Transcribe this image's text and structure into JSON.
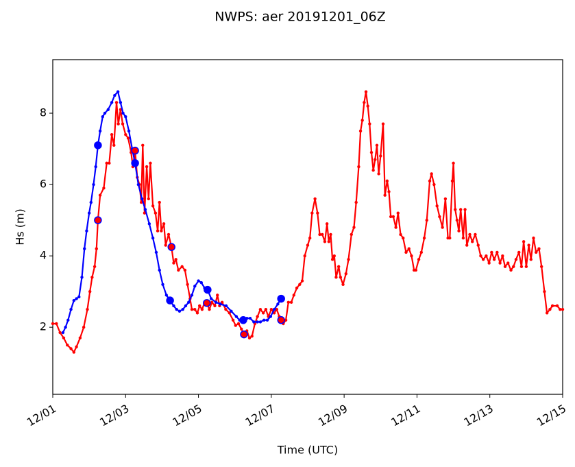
{
  "chart_data": {
    "type": "line",
    "title": "NWPS: aer 20191201_06Z",
    "xlabel": "Time (UTC)",
    "ylabel": "Hs (m)",
    "xlim": [
      1,
      15
    ],
    "ylim": [
      0.12,
      9.5
    ],
    "xticks": [
      {
        "value": 1,
        "label": "12/01"
      },
      {
        "value": 3,
        "label": "12/03"
      },
      {
        "value": 5,
        "label": "12/05"
      },
      {
        "value": 7,
        "label": "12/07"
      },
      {
        "value": 9,
        "label": "12/09"
      },
      {
        "value": 11,
        "label": "12/11"
      },
      {
        "value": 13,
        "label": "12/13"
      },
      {
        "value": 15,
        "label": "12/15"
      }
    ],
    "yticks": [
      2,
      4,
      6,
      8
    ],
    "series": [
      {
        "color": "#ff0000",
        "style": "line",
        "x": [
          1.0,
          1.1,
          1.2,
          1.3,
          1.4,
          1.5,
          1.58,
          1.65,
          1.75,
          1.85,
          1.95,
          2.02,
          2.08,
          2.15,
          2.2,
          2.24,
          2.3,
          2.4,
          2.48,
          2.55,
          2.62,
          2.68,
          2.75,
          2.8,
          2.86,
          2.92,
          3.0,
          3.07,
          3.15,
          3.2,
          3.26,
          3.32,
          3.38,
          3.43,
          3.47,
          3.52,
          3.58,
          3.63,
          3.68,
          3.75,
          3.82,
          3.88,
          3.93,
          3.98,
          4.05,
          4.1,
          4.18,
          4.26,
          4.32,
          4.38,
          4.45,
          4.55,
          4.63,
          4.7,
          4.77,
          4.82,
          4.9,
          4.97,
          5.03,
          5.1,
          5.17,
          5.23,
          5.3,
          5.37,
          5.45,
          5.52,
          5.58,
          5.65,
          5.75,
          5.85,
          5.95,
          6.02,
          6.1,
          6.18,
          6.25,
          6.33,
          6.4,
          6.47,
          6.55,
          6.62,
          6.7,
          6.78,
          6.85,
          6.92,
          7.0,
          7.08,
          7.15,
          7.22,
          7.27,
          7.33,
          7.4,
          7.47,
          7.55,
          7.62,
          7.7,
          7.78,
          7.85,
          7.92,
          8.0,
          8.06,
          8.12,
          8.2,
          8.27,
          8.33,
          8.4,
          8.47,
          8.53,
          8.58,
          8.63,
          8.68,
          8.73,
          8.78,
          8.85,
          8.9,
          8.97,
          9.05,
          9.12,
          9.2,
          9.27,
          9.33,
          9.4,
          9.45,
          9.5,
          9.55,
          9.6,
          9.65,
          9.7,
          9.75,
          9.8,
          9.85,
          9.9,
          9.95,
          10.0,
          10.07,
          10.12,
          10.18,
          10.23,
          10.28,
          10.35,
          10.42,
          10.48,
          10.55,
          10.62,
          10.7,
          10.78,
          10.85,
          10.92,
          10.97,
          11.05,
          11.12,
          11.2,
          11.27,
          11.35,
          11.4,
          11.47,
          11.55,
          11.62,
          11.7,
          11.78,
          11.85,
          11.9,
          11.97,
          12.0,
          12.05,
          12.1,
          12.15,
          12.2,
          12.27,
          12.32,
          12.37,
          12.45,
          12.52,
          12.6,
          12.68,
          12.75,
          12.82,
          12.9,
          12.98,
          13.05,
          13.12,
          13.2,
          13.28,
          13.35,
          13.42,
          13.5,
          13.58,
          13.65,
          13.72,
          13.8,
          13.87,
          13.93,
          14.0,
          14.07,
          14.13,
          14.2,
          14.27,
          14.35,
          14.42,
          14.5,
          14.57,
          14.65,
          14.72,
          14.85,
          14.93,
          15.0
        ],
        "values": [
          2.1,
          2.1,
          1.85,
          1.7,
          1.5,
          1.4,
          1.3,
          1.45,
          1.7,
          2.0,
          2.5,
          3.0,
          3.4,
          3.7,
          4.2,
          5.0,
          5.7,
          5.9,
          6.6,
          6.6,
          7.4,
          7.1,
          8.3,
          7.7,
          8.1,
          7.7,
          7.4,
          7.3,
          6.9,
          6.5,
          6.95,
          6.2,
          6.0,
          5.5,
          7.1,
          5.2,
          6.5,
          5.6,
          6.6,
          5.4,
          5.2,
          4.7,
          5.5,
          4.7,
          4.9,
          4.3,
          4.6,
          4.25,
          3.8,
          3.9,
          3.6,
          3.7,
          3.6,
          3.2,
          2.8,
          2.5,
          2.5,
          2.4,
          2.6,
          2.5,
          2.7,
          2.68,
          2.5,
          2.7,
          2.6,
          2.9,
          2.6,
          2.7,
          2.5,
          2.4,
          2.2,
          2.05,
          2.1,
          1.95,
          1.8,
          1.9,
          1.7,
          1.75,
          2.1,
          2.3,
          2.5,
          2.4,
          2.5,
          2.3,
          2.5,
          2.4,
          2.5,
          2.3,
          2.2,
          2.1,
          2.2,
          2.7,
          2.7,
          2.9,
          3.1,
          3.2,
          3.3,
          4.0,
          4.3,
          4.5,
          5.2,
          5.6,
          5.2,
          4.6,
          4.6,
          4.4,
          4.9,
          4.4,
          4.6,
          3.9,
          4.0,
          3.4,
          3.7,
          3.4,
          3.2,
          3.5,
          3.9,
          4.6,
          4.8,
          5.5,
          6.5,
          7.5,
          7.8,
          8.3,
          8.6,
          8.2,
          7.7,
          6.9,
          6.4,
          6.7,
          7.1,
          6.3,
          6.8,
          7.7,
          5.7,
          6.1,
          5.8,
          5.1,
          5.1,
          4.8,
          5.2,
          4.6,
          4.5,
          4.1,
          4.2,
          4.0,
          3.6,
          3.6,
          3.9,
          4.1,
          4.5,
          5.0,
          6.1,
          6.3,
          6.0,
          5.4,
          5.1,
          4.8,
          5.6,
          4.5,
          4.5,
          6.1,
          6.6,
          5.3,
          5.0,
          4.7,
          5.3,
          4.5,
          5.3,
          4.3,
          4.6,
          4.4,
          4.6,
          4.3,
          4.0,
          3.9,
          4.0,
          3.8,
          4.1,
          3.9,
          4.1,
          3.8,
          4.0,
          3.7,
          3.8,
          3.6,
          3.7,
          3.9,
          4.1,
          3.7,
          4.4,
          3.7,
          4.3,
          3.9,
          4.5,
          4.1,
          4.2,
          3.7,
          3.0,
          2.4,
          2.5,
          2.6,
          2.6,
          2.5,
          2.5
        ]
      },
      {
        "color": "#0000ff",
        "style": "line",
        "x": [
          1.28,
          1.35,
          1.42,
          1.5,
          1.58,
          1.65,
          1.72,
          1.8,
          1.87,
          1.93,
          2.0,
          2.05,
          2.12,
          2.18,
          2.24,
          2.3,
          2.37,
          2.43,
          2.52,
          2.62,
          2.7,
          2.79,
          2.86,
          2.93,
          3.0,
          3.09,
          3.18,
          3.26,
          3.35,
          3.45,
          3.54,
          3.65,
          3.75,
          3.84,
          3.93,
          4.02,
          4.12,
          4.22,
          4.32,
          4.4,
          4.48,
          4.57,
          4.65,
          4.73,
          4.82,
          4.9,
          5.0,
          5.08,
          5.17,
          5.25,
          5.35,
          5.48,
          5.6,
          5.76,
          5.9,
          6.04,
          6.13,
          6.23,
          6.33,
          6.42,
          6.52,
          6.62,
          6.7,
          6.8,
          6.89,
          6.98,
          7.08,
          7.18,
          7.27
        ],
        "values": [
          1.85,
          2.0,
          2.2,
          2.5,
          2.75,
          2.8,
          2.85,
          3.4,
          4.2,
          4.7,
          5.2,
          5.5,
          6.0,
          6.5,
          7.1,
          7.5,
          7.9,
          8.0,
          8.1,
          8.3,
          8.5,
          8.6,
          8.3,
          8.0,
          7.9,
          7.5,
          7.0,
          6.6,
          6.0,
          5.6,
          5.3,
          4.9,
          4.5,
          4.1,
          3.6,
          3.2,
          2.9,
          2.75,
          2.6,
          2.5,
          2.45,
          2.5,
          2.6,
          2.7,
          2.9,
          3.15,
          3.3,
          3.25,
          3.1,
          3.05,
          2.8,
          2.7,
          2.65,
          2.6,
          2.45,
          2.3,
          2.2,
          2.2,
          2.25,
          2.25,
          2.15,
          2.15,
          2.15,
          2.2,
          2.2,
          2.3,
          2.5,
          2.65,
          2.8
        ]
      },
      {
        "color": "#0000ff",
        "style": "points",
        "x": [
          2.24,
          3.26,
          4.22,
          5.25,
          6.23,
          7.27
        ],
        "values": [
          7.1,
          6.6,
          2.75,
          3.05,
          2.2,
          2.8
        ]
      },
      {
        "color": "#ff0000",
        "edgecolor": "#0000ff",
        "style": "points",
        "x": [
          2.24,
          3.26,
          4.26,
          5.23,
          6.25,
          7.27
        ],
        "values": [
          5.0,
          6.95,
          4.25,
          2.68,
          1.8,
          2.2
        ]
      }
    ]
  }
}
